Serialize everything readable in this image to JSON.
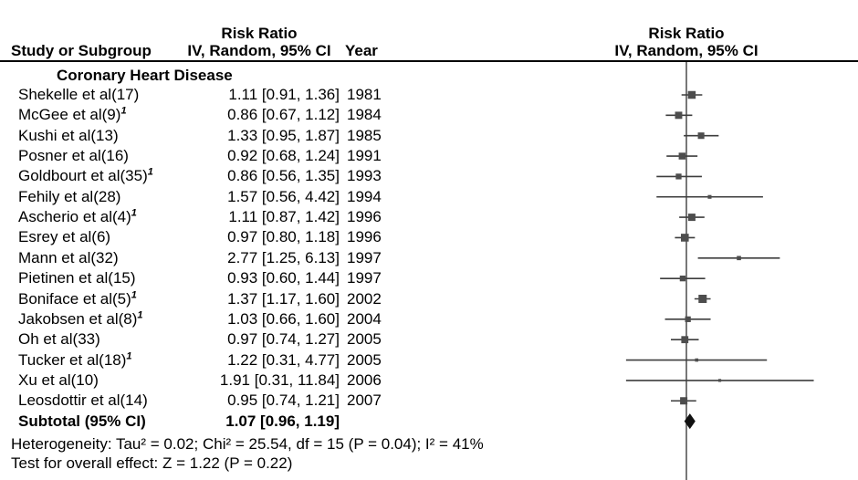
{
  "header": {
    "left_col": "Study or Subgroup",
    "effect_col_line1": "Risk Ratio",
    "effect_col_line2": "IV, Random, 95% CI",
    "year_col": "Year",
    "plot_col_line1": "Risk Ratio",
    "plot_col_line2": "IV, Random, 95% CI"
  },
  "subgroup_title": "Coronary Heart Disease",
  "chart_data": {
    "type": "forest",
    "effect_measure": "Risk Ratio",
    "method": "IV, Random, 95% CI",
    "subgroup": "Coronary Heart Disease",
    "scale": "log",
    "null_line": 1.0,
    "studies": [
      {
        "label": "Shekelle et al(17)",
        "sup": "",
        "rr": 1.11,
        "lo": 0.91,
        "hi": 1.36,
        "ci_text": "1.11 [0.91, 1.36]",
        "year": "1981"
      },
      {
        "label": "McGee et al(9)",
        "sup": "1",
        "rr": 0.86,
        "lo": 0.67,
        "hi": 1.12,
        "ci_text": "0.86 [0.67, 1.12]",
        "year": "1984"
      },
      {
        "label": "Kushi et al(13)",
        "sup": "",
        "rr": 1.33,
        "lo": 0.95,
        "hi": 1.87,
        "ci_text": "1.33 [0.95, 1.87]",
        "year": "1985"
      },
      {
        "label": "Posner et al(16)",
        "sup": "",
        "rr": 0.92,
        "lo": 0.68,
        "hi": 1.24,
        "ci_text": "0.92 [0.68, 1.24]",
        "year": "1991"
      },
      {
        "label": "Goldbourt et al(35)",
        "sup": "1",
        "rr": 0.86,
        "lo": 0.56,
        "hi": 1.35,
        "ci_text": "0.86 [0.56, 1.35]",
        "year": "1993"
      },
      {
        "label": "Fehily et al(28)",
        "sup": "",
        "rr": 1.57,
        "lo": 0.56,
        "hi": 4.42,
        "ci_text": "1.57 [0.56, 4.42]",
        "year": "1994"
      },
      {
        "label": "Ascherio et al(4)",
        "sup": "1",
        "rr": 1.11,
        "lo": 0.87,
        "hi": 1.42,
        "ci_text": "1.11 [0.87, 1.42]",
        "year": "1996"
      },
      {
        "label": "Esrey et al(6)",
        "sup": "",
        "rr": 0.97,
        "lo": 0.8,
        "hi": 1.18,
        "ci_text": "0.97 [0.80, 1.18]",
        "year": "1996"
      },
      {
        "label": "Mann et al(32)",
        "sup": "",
        "rr": 2.77,
        "lo": 1.25,
        "hi": 6.13,
        "ci_text": "2.77 [1.25, 6.13]",
        "year": "1997"
      },
      {
        "label": "Pietinen et al(15)",
        "sup": "",
        "rr": 0.93,
        "lo": 0.6,
        "hi": 1.44,
        "ci_text": "0.93 [0.60, 1.44]",
        "year": "1997"
      },
      {
        "label": "Boniface et al(5)",
        "sup": "1",
        "rr": 1.37,
        "lo": 1.17,
        "hi": 1.6,
        "ci_text": "1.37 [1.17, 1.60]",
        "year": "2002"
      },
      {
        "label": "Jakobsen et al(8)",
        "sup": "1",
        "rr": 1.03,
        "lo": 0.66,
        "hi": 1.6,
        "ci_text": "1.03 [0.66, 1.60]",
        "year": "2004"
      },
      {
        "label": "Oh et al(33)",
        "sup": "",
        "rr": 0.97,
        "lo": 0.74,
        "hi": 1.27,
        "ci_text": "0.97 [0.74, 1.27]",
        "year": "2005"
      },
      {
        "label": "Tucker et al(18)",
        "sup": "1",
        "rr": 1.22,
        "lo": 0.31,
        "hi": 4.77,
        "ci_text": "1.22 [0.31, 4.77]",
        "year": "2005"
      },
      {
        "label": "Xu et al(10)",
        "sup": "",
        "rr": 1.91,
        "lo": 0.31,
        "hi": 11.84,
        "ci_text": "1.91 [0.31, 11.84]",
        "year": "2006"
      },
      {
        "label": "Leosdottir et al(14)",
        "sup": "",
        "rr": 0.95,
        "lo": 0.74,
        "hi": 1.21,
        "ci_text": "0.95 [0.74, 1.21]",
        "year": "2007"
      }
    ],
    "subtotal": {
      "label": "Subtotal (95% CI)",
      "rr": 1.07,
      "lo": 0.96,
      "hi": 1.19,
      "ci_text": "1.07 [0.96, 1.19]",
      "year": ""
    }
  },
  "footer": {
    "heterogeneity": "Heterogeneity: Tau² = 0.02; Chi² = 25.54, df = 15 (P = 0.04); I² = 41%",
    "overall_effect": "Test for overall effect: Z = 1.22 (P = 0.22)"
  },
  "colors": {
    "text": "#000000",
    "rule": "#000000",
    "null_line": "#4a4a4a",
    "ci_line": "#3d3d3d",
    "marker": "#4d4d4d",
    "diamond": "#111111",
    "background": "#ffffff"
  }
}
